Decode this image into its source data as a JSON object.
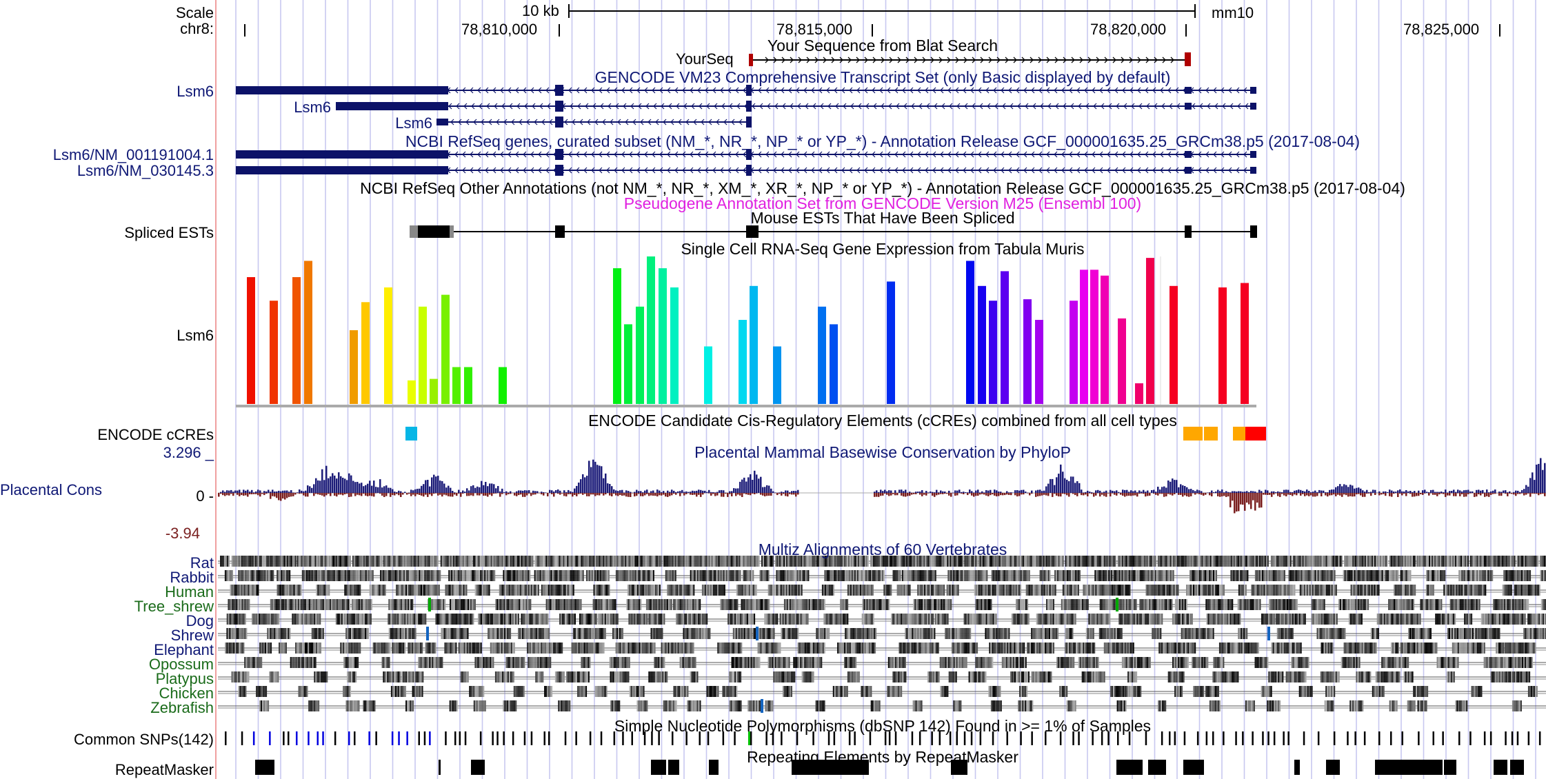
{
  "ruler": {
    "scale_label": "Scale",
    "chrom_label": "chr8:",
    "scale_bar_text": "10 kb",
    "assembly": "mm10",
    "positions": [
      "78,810,000",
      "78,815,000",
      "78,820,000",
      "78,825,000"
    ]
  },
  "blat": {
    "title": "Your Sequence from Blat Search",
    "item_label": "YourSeq"
  },
  "gencode": {
    "title": "GENCODE VM23 Comprehensive Transcript Set (only Basic displayed by default)",
    "items": [
      "Lsm6",
      "Lsm6",
      "Lsm6"
    ]
  },
  "refseq_curated": {
    "title": "NCBI RefSeq genes, curated subset (NM_*, NR_*, NP_* or YP_*) - Annotation Release GCF_000001635.25_GRCm38.p5 (2017-08-04)",
    "items": [
      "Lsm6/NM_001191004.1",
      "Lsm6/NM_030145.3"
    ]
  },
  "refseq_other": {
    "title": "NCBI RefSeq Other Annotations (not NM_*, NR_*, XM_*, XR_*, NP_* or YP_*) - Annotation Release GCF_000001635.25_GRCm38.p5 (2017-08-04)"
  },
  "pseudogene": {
    "title": "Pseudogene Annotation Set from GENCODE Version M25 (Ensembl 100)"
  },
  "ests": {
    "title": "Mouse ESTs That Have Been Spliced",
    "label": "Spliced ESTs"
  },
  "tabula": {
    "title": "Single Cell RNA-Seq Gene Expression from Tabula Muris",
    "label": "Lsm6",
    "bar_levels": [
      0.86,
      0.7,
      0.86,
      0.97,
      0.5,
      0.69,
      0.79,
      0.16,
      0.66,
      0.17,
      0.74,
      0.25,
      0.25,
      0.25,
      0.92,
      0.54,
      0.66,
      1.0,
      0.92,
      0.79,
      0.39,
      0.57,
      0.8,
      0.39,
      0.66,
      0.54,
      0.83,
      0.97,
      0.8,
      0.7,
      0.9,
      0.71,
      0.57,
      0.7,
      0.91,
      0.91,
      0.87,
      0.58,
      0.14,
      0.99,
      0.8,
      0.79,
      0.82
    ]
  },
  "ccre": {
    "title": "ENCODE Candidate Cis-Regulatory Elements (cCREs) combined from all cell types",
    "label": "ENCODE cCREs"
  },
  "phylop": {
    "title": "Placental Mammal Basewise Conservation by PhyloP",
    "label": "Placental Cons",
    "max": "3.296 _",
    "zero": "0 -",
    "min": "-3.94"
  },
  "multiz": {
    "title": "Multiz Alignments of 60 Vertebrates",
    "species": [
      {
        "name": "Rat",
        "color": "#0f1875"
      },
      {
        "name": "Rabbit",
        "color": "#0f1875"
      },
      {
        "name": "Human",
        "color": "#1a6b1a"
      },
      {
        "name": "Tree_shrew",
        "color": "#1a6b1a"
      },
      {
        "name": "Dog",
        "color": "#0f1875"
      },
      {
        "name": "Shrew",
        "color": "#0f1875"
      },
      {
        "name": "Elephant",
        "color": "#0f1875"
      },
      {
        "name": "Opossum",
        "color": "#1a6b1a"
      },
      {
        "name": "Platypus",
        "color": "#1a6b1a"
      },
      {
        "name": "Chicken",
        "color": "#1a6b1a"
      },
      {
        "name": "Zebrafish",
        "color": "#1a6b1a"
      }
    ]
  },
  "snps": {
    "title": "Simple Nucleotide Polymorphisms (dbSNP 142) Found in >= 1% of Samples",
    "label": "Common SNPs(142)"
  },
  "rmsk": {
    "title": "Repeating Elements by RepeatMasker",
    "label": "RepeatMasker"
  },
  "colors": {
    "navy": "#0f1875",
    "gene": "#0c1268",
    "guide_line": "#c8c8f0",
    "conservation_pos": "#1c1c78",
    "conservation_neg": "#7a1e1e",
    "ccre_promoter": "#ff0000",
    "ccre_enhancer": "#ffa700",
    "ccre_ctcf": "#06b6e6"
  }
}
